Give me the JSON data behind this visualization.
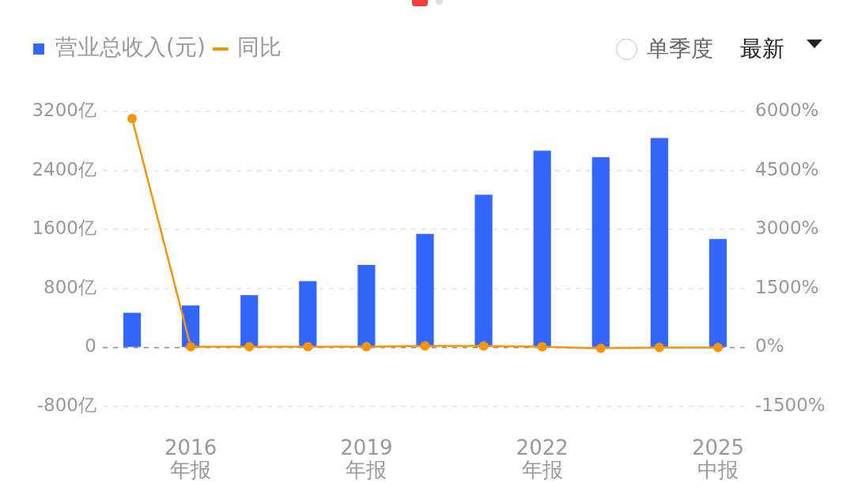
{
  "chart_data": {
    "type": "bar",
    "categories": [
      null,
      "2016\n年报",
      null,
      null,
      "2019\n年报",
      null,
      null,
      "2022\n年报",
      null,
      null,
      "2025\n中报"
    ],
    "series": [
      {
        "name": "营业总收入(元)",
        "color": "#3366ff",
        "values": [
          470,
          570,
          710,
          900,
          1120,
          1540,
          2070,
          2670,
          2580,
          2840,
          1470
        ]
      },
      {
        "name": "同比",
        "type": "line",
        "axis": "y2",
        "color": "#f5960a",
        "values": [
          5820,
          20,
          20,
          20,
          20,
          40,
          40,
          20,
          -20,
          0,
          0
        ]
      }
    ],
    "ylim": [
      -800,
      3200
    ],
    "yticks": [
      {
        "value": -800,
        "label": "-800亿"
      },
      {
        "value": 0,
        "label": "0"
      },
      {
        "value": 800,
        "label": "800亿"
      },
      {
        "value": 1600,
        "label": "1600亿"
      },
      {
        "value": 2400,
        "label": "2400亿"
      },
      {
        "value": 3200,
        "label": "3200亿"
      }
    ],
    "y2lim": [
      -1500,
      6000
    ],
    "y2ticks": [
      {
        "value": -1500,
        "label": "-1500%"
      },
      {
        "value": 0,
        "label": "0%"
      },
      {
        "value": 1500,
        "label": "1500%"
      },
      {
        "value": 3000,
        "label": "3000%"
      },
      {
        "value": 4500,
        "label": "4500%"
      },
      {
        "value": 6000,
        "label": "6000%"
      }
    ],
    "ref_lines": [
      {
        "axis": "y",
        "value": 0,
        "color": "#8c8c8c",
        "line_style": "dashed"
      }
    ],
    "grid": "y",
    "legend": "top left",
    "marker": "circle",
    "annotations": [
      "单季度",
      "最新"
    ]
  }
}
